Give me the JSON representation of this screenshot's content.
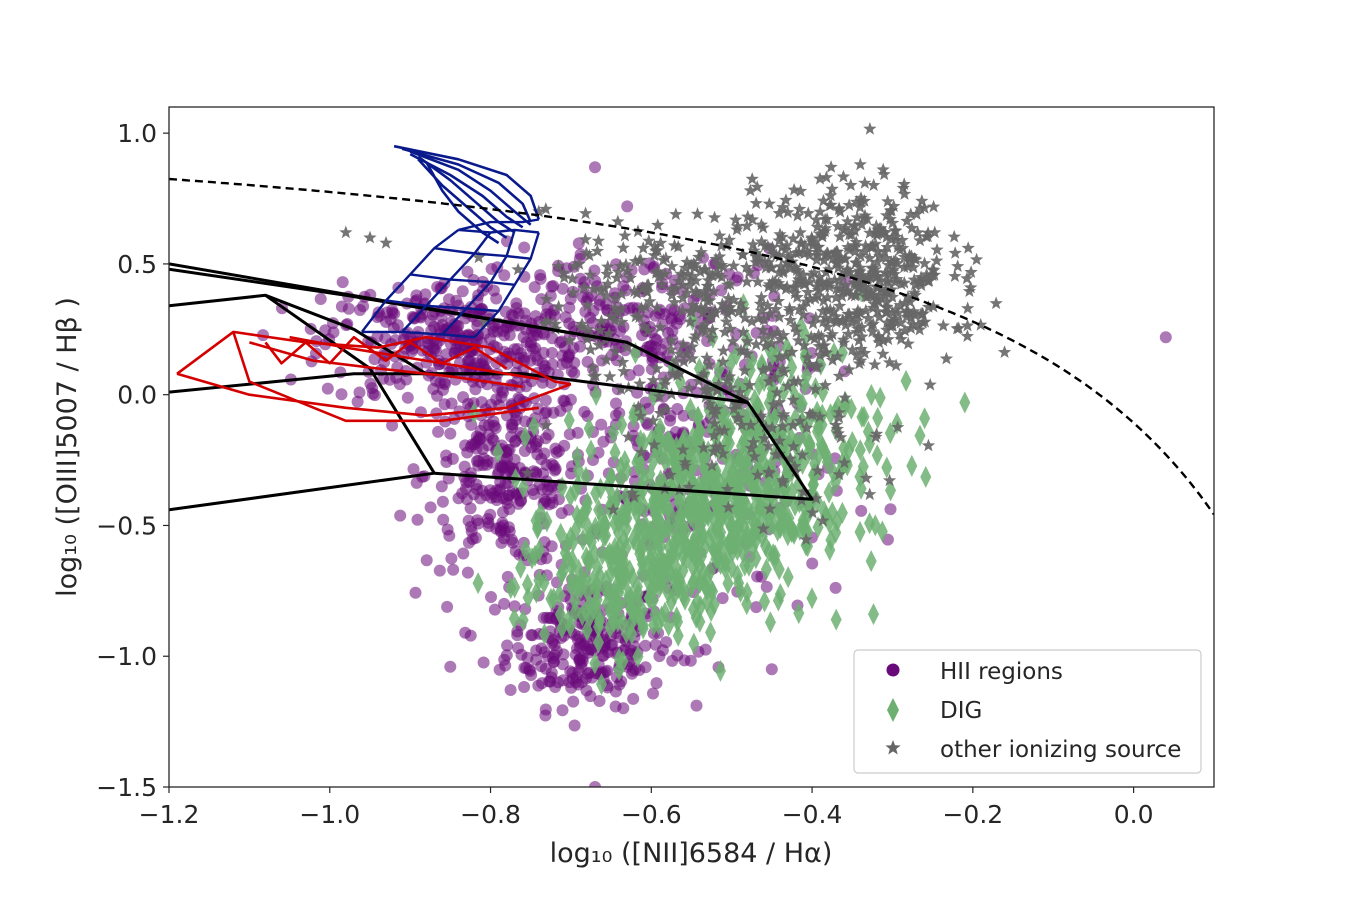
{
  "chart_data": {
    "type": "scatter",
    "title": "",
    "xlabel": "log₁₀ ([NII]6584 / Hα)",
    "ylabel": "log₁₀ ([OIII]5007 / Hβ )",
    "xlim": [
      -1.2,
      0.1
    ],
    "ylim": [
      -1.5,
      1.1
    ],
    "xticks": [
      -1.2,
      -1.0,
      -0.8,
      -0.6,
      -0.4,
      -0.2,
      0.0
    ],
    "xtick_labels": [
      "−1.2",
      "−1.0",
      "−0.8",
      "−0.6",
      "−0.4",
      "−0.2",
      "0.0"
    ],
    "yticks": [
      -1.5,
      -1.0,
      -0.5,
      0.0,
      0.5,
      1.0
    ],
    "ytick_labels": [
      "−1.5",
      "−1.0",
      "−0.5",
      "0.0",
      "0.5",
      "1.0"
    ],
    "grid": false,
    "legend_position": "lower-right",
    "colors": {
      "hii": "#6a0a7a",
      "dig": "#6db072",
      "other": "#666666",
      "model_blue": "#0a1a8c",
      "model_red": "#d40000",
      "model_black": "#000000",
      "kewley": "#000000"
    },
    "series": [
      {
        "name": "HII regions",
        "marker": "circle",
        "clusters": [
          {
            "cx": -0.68,
            "cy": -0.95,
            "sx": 0.05,
            "sy": 0.12,
            "n": 260
          },
          {
            "cx": -0.78,
            "cy": -0.3,
            "sx": 0.05,
            "sy": 0.18,
            "n": 280
          },
          {
            "cx": -0.85,
            "cy": 0.2,
            "sx": 0.08,
            "sy": 0.12,
            "n": 320
          },
          {
            "cx": -0.62,
            "cy": 0.25,
            "sx": 0.1,
            "sy": 0.15,
            "n": 240
          },
          {
            "cx": -0.55,
            "cy": -0.35,
            "sx": 0.09,
            "sy": 0.28,
            "n": 220
          }
        ],
        "outliers": [
          [
            -0.67,
            0.87
          ],
          [
            0.04,
            0.22
          ],
          [
            -0.85,
            -1.04
          ],
          [
            -0.67,
            -1.5
          ],
          [
            -0.63,
            0.72
          ],
          [
            -0.62,
            -1.05
          ]
        ]
      },
      {
        "name": "DIG",
        "marker": "diamond",
        "clusters": [
          {
            "cx": -0.55,
            "cy": -0.45,
            "sx": 0.08,
            "sy": 0.18,
            "n": 520
          },
          {
            "cx": -0.45,
            "cy": -0.15,
            "sx": 0.07,
            "sy": 0.2,
            "n": 240
          },
          {
            "cx": -0.65,
            "cy": -0.75,
            "sx": 0.06,
            "sy": 0.12,
            "n": 160
          }
        ],
        "outliers": [
          [
            -0.21,
            -0.03
          ],
          [
            -0.26,
            -0.09
          ],
          [
            -0.37,
            -0.86
          ]
        ]
      },
      {
        "name": "other ionizing source",
        "marker": "star",
        "clusters": [
          {
            "cx": -0.35,
            "cy": 0.55,
            "sx": 0.06,
            "sy": 0.13,
            "n": 320
          },
          {
            "cx": -0.55,
            "cy": 0.4,
            "sx": 0.09,
            "sy": 0.14,
            "n": 260
          },
          {
            "cx": -0.48,
            "cy": -0.05,
            "sx": 0.1,
            "sy": 0.22,
            "n": 200
          },
          {
            "cx": -0.32,
            "cy": 0.3,
            "sx": 0.05,
            "sy": 0.08,
            "n": 140
          }
        ],
        "outliers": [
          [
            -0.95,
            0.6
          ],
          [
            -0.98,
            0.62
          ],
          [
            -0.93,
            0.58
          ],
          [
            -0.74,
            0.7
          ],
          [
            -0.27,
            0.69
          ],
          [
            -0.34,
            0.88
          ],
          [
            -0.48,
            0.68
          ]
        ]
      }
    ],
    "reference_curve": {
      "name": "Kewley 2001 maximum starburst line",
      "style": "dashed",
      "formula": "0.61/(x-0.47)+1.19",
      "x_range": [
        -1.2,
        0.1
      ]
    },
    "model_grids": {
      "black": [
        [
          [
            -1.2,
            0.5
          ],
          [
            -0.63,
            0.2
          ],
          [
            -0.48,
            -0.03
          ],
          [
            -0.4,
            -0.4
          ],
          [
            -0.87,
            -0.3
          ],
          [
            -1.2,
            -0.44
          ]
        ],
        [
          [
            -1.2,
            0.34
          ],
          [
            -1.08,
            0.38
          ],
          [
            -0.97,
            0.25
          ],
          [
            -0.88,
            0.08
          ],
          [
            -0.76,
            0.08
          ],
          [
            -0.48,
            -0.03
          ]
        ],
        [
          [
            -1.2,
            0.48
          ],
          [
            -0.98,
            0.38
          ],
          [
            -0.63,
            0.2
          ]
        ],
        [
          [
            -1.2,
            0.01
          ],
          [
            -0.97,
            0.08
          ],
          [
            -0.76,
            0.08
          ]
        ],
        [
          [
            -1.08,
            0.38
          ],
          [
            -0.95,
            0.1
          ],
          [
            -0.87,
            -0.3
          ]
        ]
      ],
      "red": [
        [
          [
            -1.19,
            0.08
          ],
          [
            -1.12,
            0.24
          ],
          [
            -1.03,
            0.2
          ],
          [
            -0.94,
            0.18
          ],
          [
            -0.88,
            0.22
          ],
          [
            -0.8,
            0.18
          ],
          [
            -0.72,
            0.05
          ],
          [
            -0.7,
            0.04
          ]
        ],
        [
          [
            -1.19,
            0.08
          ],
          [
            -1.1,
            0.0
          ],
          [
            -0.98,
            -0.05
          ],
          [
            -0.88,
            -0.08
          ],
          [
            -0.78,
            -0.05
          ],
          [
            -0.7,
            0.04
          ]
        ],
        [
          [
            -1.12,
            0.24
          ],
          [
            -1.1,
            0.05
          ],
          [
            -0.98,
            -0.1
          ],
          [
            -0.86,
            -0.1
          ],
          [
            -0.74,
            -0.05
          ]
        ],
        [
          [
            -1.1,
            0.2
          ],
          [
            -1.02,
            0.13
          ],
          [
            -0.94,
            0.1
          ],
          [
            -0.85,
            0.07
          ],
          [
            -0.76,
            0.03
          ]
        ],
        [
          [
            -1.05,
            0.22
          ],
          [
            -0.98,
            0.18
          ],
          [
            -0.9,
            0.14
          ],
          [
            -0.82,
            0.1
          ],
          [
            -0.74,
            0.06
          ]
        ],
        [
          [
            -1.08,
            0.2
          ],
          [
            -1.06,
            0.12
          ],
          [
            -1.03,
            0.2
          ],
          [
            -1.0,
            0.12
          ],
          [
            -0.97,
            0.22
          ],
          [
            -0.93,
            0.13
          ],
          [
            -0.9,
            0.2
          ],
          [
            -0.86,
            0.12
          ],
          [
            -0.82,
            0.18
          ],
          [
            -0.78,
            0.1
          ]
        ]
      ],
      "blue": {
        "top_fan": [
          [
            [
              -0.92,
              0.95
            ],
            [
              -0.84,
              0.9
            ],
            [
              -0.78,
              0.84
            ],
            [
              -0.75,
              0.76
            ],
            [
              -0.74,
              0.67
            ]
          ],
          [
            [
              -0.91,
              0.94
            ],
            [
              -0.84,
              0.88
            ],
            [
              -0.79,
              0.81
            ],
            [
              -0.76,
              0.73
            ],
            [
              -0.75,
              0.66
            ]
          ],
          [
            [
              -0.9,
              0.93
            ],
            [
              -0.84,
              0.86
            ],
            [
              -0.8,
              0.78
            ],
            [
              -0.77,
              0.7
            ],
            [
              -0.75,
              0.65
            ]
          ],
          [
            [
              -0.9,
              0.92
            ],
            [
              -0.85,
              0.84
            ],
            [
              -0.81,
              0.76
            ],
            [
              -0.78,
              0.68
            ],
            [
              -0.76,
              0.64
            ]
          ],
          [
            [
              -0.89,
              0.91
            ],
            [
              -0.85,
              0.82
            ],
            [
              -0.82,
              0.74
            ],
            [
              -0.79,
              0.66
            ],
            [
              -0.77,
              0.62
            ]
          ],
          [
            [
              -0.89,
              0.9
            ],
            [
              -0.86,
              0.8
            ],
            [
              -0.83,
              0.72
            ],
            [
              -0.8,
              0.64
            ],
            [
              -0.78,
              0.6
            ]
          ],
          [
            [
              -0.88,
              0.89
            ],
            [
              -0.86,
              0.78
            ],
            [
              -0.84,
              0.7
            ],
            [
              -0.81,
              0.62
            ],
            [
              -0.79,
              0.58
            ]
          ]
        ],
        "grid": [
          [
            [
              -0.96,
              0.24
            ],
            [
              -0.93,
              0.36
            ],
            [
              -0.9,
              0.46
            ],
            [
              -0.87,
              0.56
            ],
            [
              -0.84,
              0.63
            ]
          ],
          [
            [
              -0.91,
              0.24
            ],
            [
              -0.88,
              0.34
            ],
            [
              -0.85,
              0.44
            ],
            [
              -0.82,
              0.54
            ],
            [
              -0.8,
              0.62
            ]
          ],
          [
            [
              -0.86,
              0.23
            ],
            [
              -0.83,
              0.33
            ],
            [
              -0.8,
              0.43
            ],
            [
              -0.78,
              0.53
            ],
            [
              -0.77,
              0.63
            ]
          ],
          [
            [
              -0.82,
              0.22
            ],
            [
              -0.79,
              0.32
            ],
            [
              -0.77,
              0.42
            ],
            [
              -0.75,
              0.52
            ],
            [
              -0.74,
              0.62
            ]
          ],
          [
            [
              -0.96,
              0.24
            ],
            [
              -0.91,
              0.24
            ],
            [
              -0.86,
              0.23
            ],
            [
              -0.82,
              0.22
            ]
          ],
          [
            [
              -0.93,
              0.36
            ],
            [
              -0.88,
              0.34
            ],
            [
              -0.83,
              0.33
            ],
            [
              -0.79,
              0.32
            ]
          ],
          [
            [
              -0.9,
              0.46
            ],
            [
              -0.85,
              0.44
            ],
            [
              -0.8,
              0.43
            ],
            [
              -0.77,
              0.42
            ]
          ],
          [
            [
              -0.87,
              0.56
            ],
            [
              -0.82,
              0.54
            ],
            [
              -0.78,
              0.53
            ],
            [
              -0.75,
              0.52
            ]
          ],
          [
            [
              -0.84,
              0.63
            ],
            [
              -0.8,
              0.62
            ],
            [
              -0.77,
              0.63
            ],
            [
              -0.74,
              0.62
            ]
          ],
          [
            [
              -0.84,
              0.63
            ],
            [
              -0.8,
              0.66
            ],
            [
              -0.76,
              0.66
            ],
            [
              -0.74,
              0.67
            ]
          ]
        ]
      }
    }
  }
}
